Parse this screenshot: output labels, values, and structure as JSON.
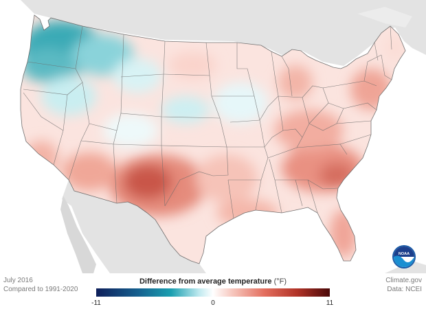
{
  "footer": {
    "date": "July 2016",
    "comparison": "Compared to 1991-2020",
    "source_site": "Climate.gov",
    "source_data": "Data: NCEI"
  },
  "legend": {
    "title": "Difference from average temperature",
    "unit": "(°F)",
    "min_label": "-11",
    "mid_label": "0",
    "max_label": "11",
    "scale_min": -11,
    "scale_max": 11,
    "colors": [
      "#0e1f5a",
      "#15608f",
      "#1a9fb0",
      "#bfe9ef",
      "#ffffff",
      "#f7c9c0",
      "#e36e5e",
      "#b13327",
      "#4a0808"
    ]
  },
  "logo": {
    "text": "NOAA",
    "icon": "noaa-logo-icon"
  },
  "colors": {
    "land_background": "#e3e3e3",
    "ocean": "#ffffff",
    "warm": "#e36e5e",
    "cool": "#1a9fb0"
  }
}
